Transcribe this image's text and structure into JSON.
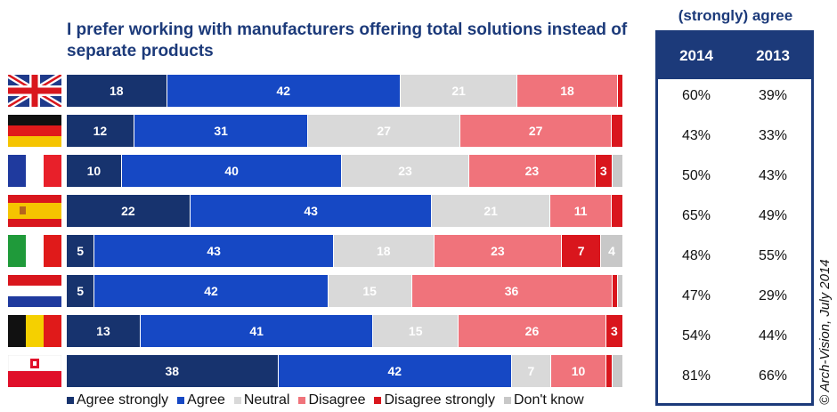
{
  "chart_data": {
    "type": "bar",
    "stacked": true,
    "orientation": "horizontal",
    "title": "I prefer working with manufacturers offering total solutions instead of separate  products",
    "categories": [
      "United Kingdom",
      "Germany",
      "France",
      "Spain",
      "Italy",
      "Netherlands",
      "Belgium",
      "Poland"
    ],
    "series": [
      {
        "name": "Agree strongly",
        "color": "#17336e",
        "values": [
          18,
          12,
          10,
          22,
          5,
          5,
          13,
          38
        ]
      },
      {
        "name": "Agree",
        "color": "#1648c4",
        "values": [
          42,
          31,
          40,
          43,
          43,
          42,
          41,
          42
        ]
      },
      {
        "name": "Neutral",
        "color": "#d9d9d9",
        "values": [
          21,
          27,
          23,
          21,
          18,
          15,
          15,
          7
        ]
      },
      {
        "name": "Disagree",
        "color": "#f0737b",
        "values": [
          18,
          27,
          23,
          11,
          23,
          36,
          26,
          10
        ]
      },
      {
        "name": "Disagree strongly",
        "color": "#d9161d",
        "values": [
          1,
          2,
          3,
          2,
          7,
          1,
          3,
          1
        ]
      },
      {
        "name": "Don't know",
        "color": "#c8c8c8",
        "values": [
          0,
          0,
          2,
          0,
          4,
          1,
          0,
          2
        ]
      }
    ],
    "label_threshold": 3,
    "legend": "bottom"
  },
  "table": {
    "label": "(strongly) agree",
    "headers": [
      "2014",
      "2013"
    ],
    "rows": [
      [
        "60%",
        "39%"
      ],
      [
        "43%",
        "33%"
      ],
      [
        "50%",
        "43%"
      ],
      [
        "65%",
        "49%"
      ],
      [
        "48%",
        "55%"
      ],
      [
        "47%",
        "29%"
      ],
      [
        "54%",
        "44%"
      ],
      [
        "81%",
        "66%"
      ]
    ]
  },
  "credit": "© Arch-Vision, July 2014",
  "flags": [
    "uk-flag-icon",
    "germany-flag-icon",
    "france-flag-icon",
    "spain-flag-icon",
    "italy-flag-icon",
    "netherlands-flag-icon",
    "belgium-flag-icon",
    "poland-flag-icon"
  ]
}
